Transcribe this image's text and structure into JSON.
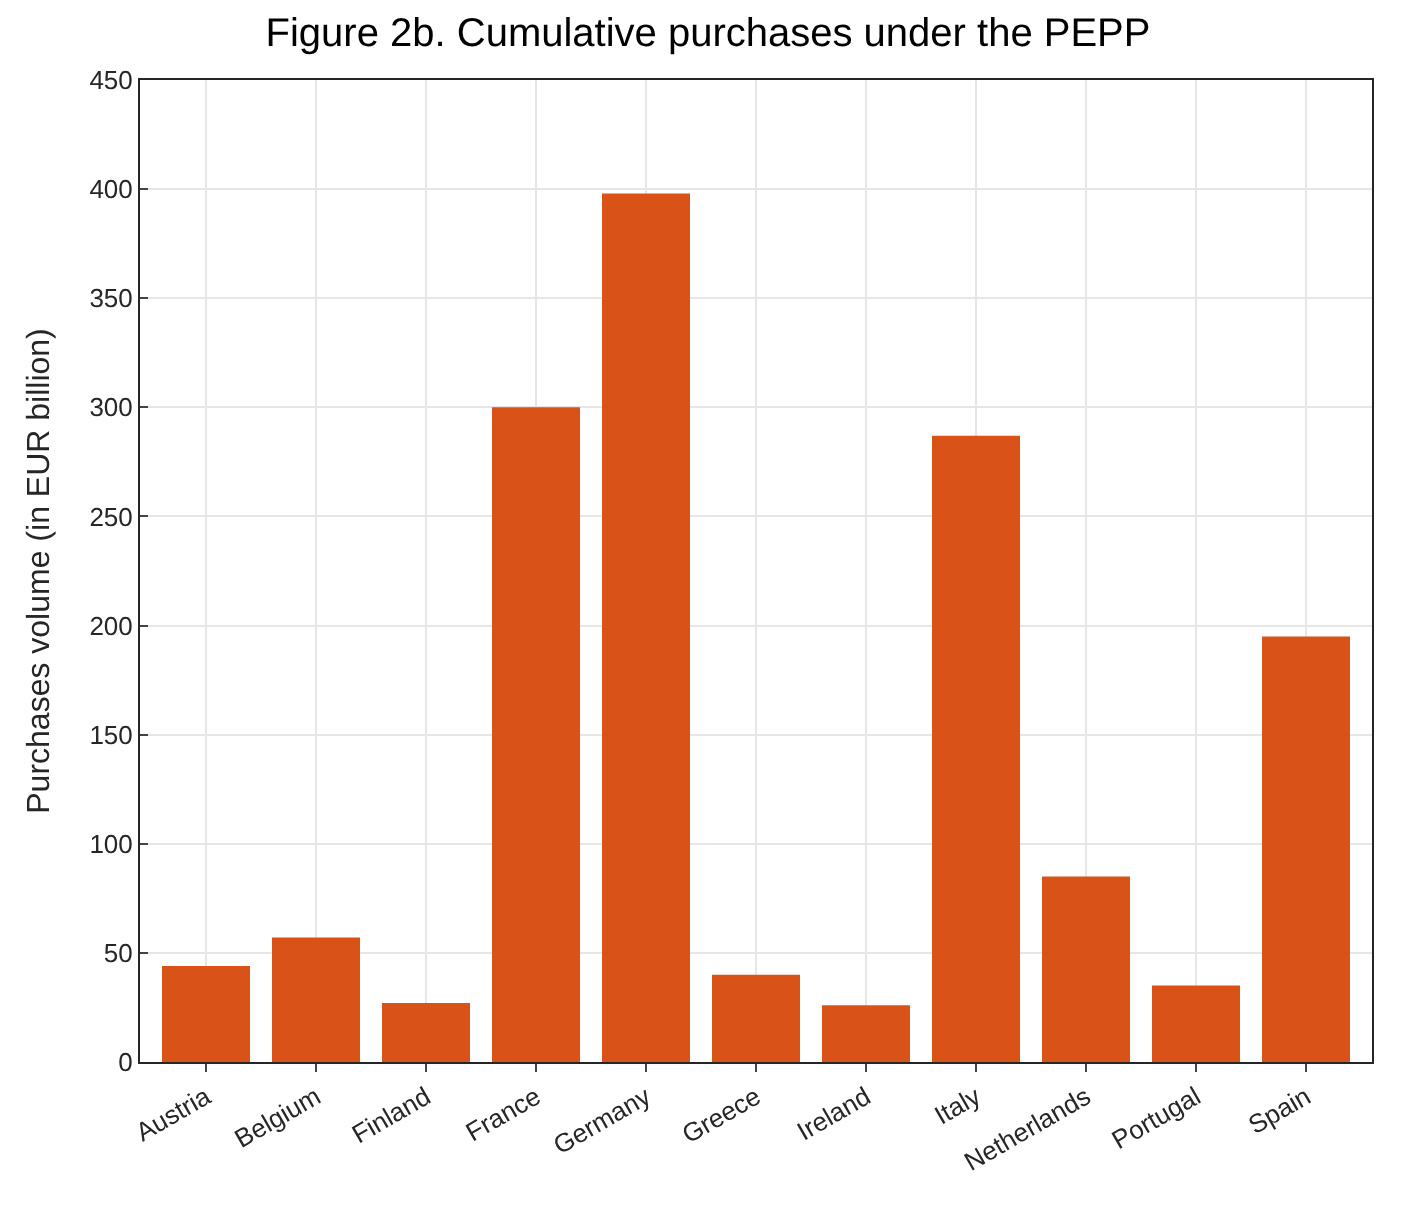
{
  "chart_data": {
    "type": "bar",
    "title": "Figure 2b. Cumulative purchases under the PEPP",
    "ylabel": "Purchases volume (in EUR billion)",
    "categories": [
      "Austria",
      "Belgium",
      "Finland",
      "France",
      "Germany",
      "Greece",
      "Ireland",
      "Italy",
      "Netherlands",
      "Portugal",
      "Spain"
    ],
    "values": [
      44,
      57,
      27,
      300,
      398,
      40,
      26,
      287,
      85,
      35,
      195
    ],
    "color": "#d95319",
    "ylim": [
      0,
      450
    ],
    "yticks": [
      0,
      50,
      100,
      150,
      200,
      250,
      300,
      350,
      400,
      450
    ],
    "grid": true
  }
}
